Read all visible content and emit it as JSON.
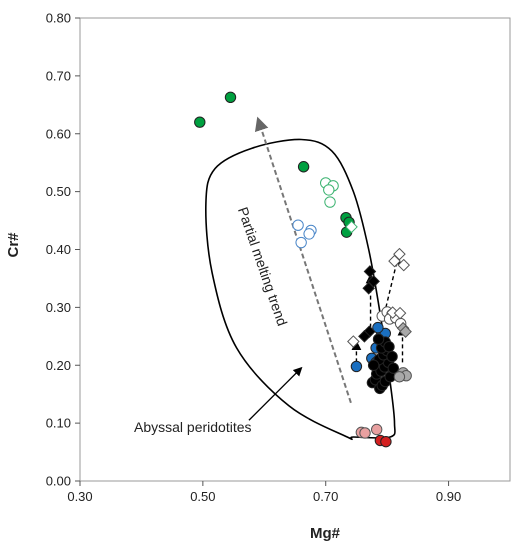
{
  "chart_data": {
    "type": "scatter",
    "title": "",
    "xlabel": "Mg#",
    "ylabel": "Cr#",
    "xlim": [
      0.3,
      1.0
    ],
    "ylim": [
      0.0,
      0.8
    ],
    "x_ticks": [
      0.3,
      0.5,
      0.7,
      0.9
    ],
    "x_tick_labels": [
      "0.30",
      "0.50",
      "0.70",
      "0.90"
    ],
    "y_ticks": [
      0.0,
      0.1,
      0.2,
      0.3,
      0.4,
      0.5,
      0.6,
      0.7,
      0.8
    ],
    "y_tick_labels": [
      "0.00",
      "0.10",
      "0.20",
      "0.30",
      "0.40",
      "0.50",
      "0.60",
      "0.70",
      "0.80"
    ],
    "grid": false,
    "annotations": {
      "trend_label": "Partial melting trend",
      "field_label": "Abyssal peridotites"
    },
    "trend_arrow": {
      "from": [
        0.741,
        0.135
      ],
      "to": [
        0.59,
        0.625
      ]
    },
    "field_arrow": {
      "from": [
        0.575,
        0.105
      ],
      "to": [
        0.66,
        0.195
      ]
    },
    "abyssal_field_outline": [
      [
        0.745,
        0.076
      ],
      [
        0.735,
        0.076
      ],
      [
        0.64,
        0.13
      ],
      [
        0.555,
        0.23
      ],
      [
        0.515,
        0.36
      ],
      [
        0.505,
        0.48
      ],
      [
        0.52,
        0.54
      ],
      [
        0.58,
        0.575
      ],
      [
        0.66,
        0.59
      ],
      [
        0.71,
        0.57
      ],
      [
        0.745,
        0.5
      ],
      [
        0.77,
        0.4
      ],
      [
        0.79,
        0.28
      ],
      [
        0.805,
        0.17
      ],
      [
        0.812,
        0.1
      ],
      [
        0.805,
        0.076
      ]
    ],
    "series": [
      {
        "marker": "circle",
        "color": "#00a040",
        "fill": "filled",
        "points": [
          [
            0.495,
            0.62
          ],
          [
            0.545,
            0.663
          ],
          [
            0.664,
            0.543
          ],
          [
            0.733,
            0.455
          ],
          [
            0.738,
            0.447
          ],
          [
            0.734,
            0.43
          ]
        ]
      },
      {
        "marker": "circle",
        "color": "#3cb371",
        "fill": "open",
        "points": [
          [
            0.7,
            0.515
          ],
          [
            0.712,
            0.51
          ],
          [
            0.705,
            0.503
          ],
          [
            0.707,
            0.482
          ]
        ]
      },
      {
        "marker": "circle",
        "color": "#4a86c8",
        "fill": "open",
        "points": [
          [
            0.655,
            0.442
          ],
          [
            0.676,
            0.433
          ],
          [
            0.673,
            0.427
          ],
          [
            0.66,
            0.412
          ]
        ]
      },
      {
        "marker": "circle",
        "color": "#1a6fc0",
        "fill": "filled",
        "points": [
          [
            0.75,
            0.198
          ],
          [
            0.775,
            0.212
          ],
          [
            0.782,
            0.23
          ],
          [
            0.79,
            0.25
          ],
          [
            0.797,
            0.255
          ],
          [
            0.785,
            0.265
          ],
          [
            0.782,
            0.205
          ]
        ]
      },
      {
        "marker": "circle",
        "color": "#000000",
        "fill": "filled",
        "points": [
          [
            0.776,
            0.17
          ],
          [
            0.781,
            0.175
          ],
          [
            0.788,
            0.16
          ],
          [
            0.792,
            0.165
          ],
          [
            0.797,
            0.172
          ],
          [
            0.783,
            0.185
          ],
          [
            0.79,
            0.19
          ],
          [
            0.796,
            0.197
          ],
          [
            0.802,
            0.205
          ],
          [
            0.787,
            0.21
          ],
          [
            0.794,
            0.218
          ],
          [
            0.8,
            0.225
          ],
          [
            0.791,
            0.23
          ],
          [
            0.797,
            0.24
          ],
          [
            0.803,
            0.232
          ],
          [
            0.786,
            0.245
          ],
          [
            0.778,
            0.2
          ],
          [
            0.805,
            0.18
          ],
          [
            0.81,
            0.195
          ],
          [
            0.808,
            0.215
          ]
        ]
      },
      {
        "marker": "circle",
        "color": "#555555",
        "fill": "open",
        "points": [
          [
            0.792,
            0.285
          ],
          [
            0.8,
            0.292
          ],
          [
            0.808,
            0.288
          ],
          [
            0.804,
            0.28
          ],
          [
            0.814,
            0.282
          ],
          [
            0.822,
            0.272
          ]
        ]
      },
      {
        "marker": "circle",
        "color": "#777777",
        "fill": "gray",
        "points": [
          [
            0.826,
            0.187
          ],
          [
            0.831,
            0.182
          ],
          [
            0.82,
            0.18
          ]
        ]
      },
      {
        "marker": "circle",
        "color": "#d42020",
        "fill": "filled",
        "points": [
          [
            0.789,
            0.07
          ],
          [
            0.798,
            0.068
          ]
        ]
      },
      {
        "marker": "circle",
        "color": "#e08080",
        "fill": "gray",
        "points": [
          [
            0.758,
            0.084
          ],
          [
            0.764,
            0.083
          ],
          [
            0.783,
            0.089
          ]
        ]
      },
      {
        "marker": "diamond",
        "color": "#000000",
        "fill": "filled",
        "points": [
          [
            0.772,
            0.362
          ],
          [
            0.778,
            0.345
          ],
          [
            0.77,
            0.333
          ],
          [
            0.771,
            0.258
          ],
          [
            0.763,
            0.25
          ]
        ]
      },
      {
        "marker": "diamond",
        "color": "#555555",
        "fill": "open",
        "points": [
          [
            0.82,
            0.392
          ],
          [
            0.812,
            0.38
          ],
          [
            0.827,
            0.373
          ],
          [
            0.809,
            0.291
          ],
          [
            0.821,
            0.29
          ],
          [
            0.745,
            0.241
          ]
        ]
      },
      {
        "marker": "diamond",
        "color": "#666666",
        "fill": "gray",
        "points": [
          [
            0.826,
            0.264
          ],
          [
            0.83,
            0.258
          ]
        ]
      },
      {
        "marker": "diamond",
        "color": "#3cb371",
        "fill": "open",
        "points": [
          [
            0.742,
            0.439
          ]
        ]
      }
    ],
    "dashed_arrows": [
      {
        "from": [
          0.773,
          0.265
        ],
        "to": [
          0.773,
          0.355
        ]
      },
      {
        "from": [
          0.798,
          0.3
        ],
        "to": [
          0.818,
          0.388
        ]
      },
      {
        "from": [
          0.825,
          0.205
        ],
        "to": [
          0.825,
          0.265
        ]
      },
      {
        "from": [
          0.75,
          0.205
        ],
        "to": [
          0.75,
          0.24
        ]
      }
    ]
  }
}
